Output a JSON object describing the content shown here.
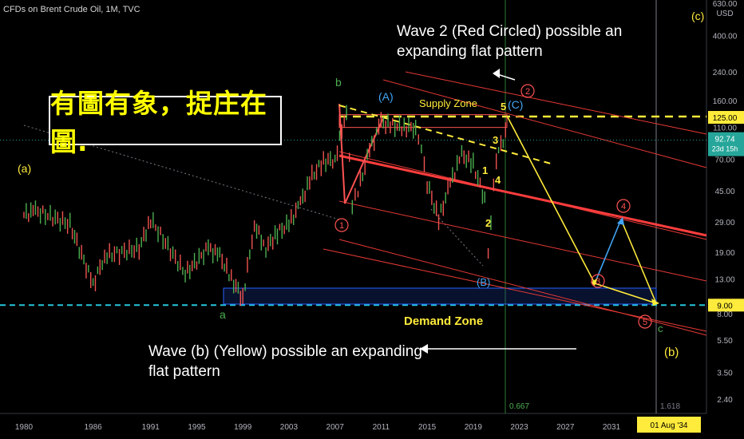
{
  "header": {
    "title": "CFDs on Brent Crude Oil, 1M, TVC"
  },
  "banner": {
    "text": "有圖有象，捉庄在圖."
  },
  "annotations": {
    "wave2_note_line1": "Wave 2 (Red Circled) possible an",
    "wave2_note_line2": "expanding flat pattern",
    "waveb_note_line1": "Wave (b) (Yellow) possible an expanding",
    "waveb_note_line2": "flat pattern",
    "supply_zone": "Supply Zone",
    "demand_zone": "Demand Zone",
    "label_a_paren": "(a)",
    "label_b_green": "b",
    "label_a_green": "a",
    "label_A_blue": "(A)",
    "label_B_blue": "(B)",
    "label_C_blue": "(C)",
    "label_c_paren": "(c)",
    "label_b_paren": "(b)",
    "label_c_green": "c",
    "wave_1": "1",
    "wave_2": "2",
    "wave_3": "3",
    "wave_4": "4",
    "wave_5": "5",
    "circ_1": "1",
    "circ_2": "2",
    "circ_3": "3",
    "circ_4": "4",
    "circ_5": "5",
    "fib_0667": "0.667",
    "fib_1618": "1.618"
  },
  "price_axis": {
    "currency": "USD",
    "ticks": [
      "630.00",
      "400.00",
      "240.00",
      "160.00",
      "125.00",
      "110.00",
      "92.74",
      "70.00",
      "45.00",
      "29.00",
      "19.00",
      "13.00",
      "9.00",
      "8.00",
      "5.50",
      "3.50",
      "2.40"
    ],
    "current_price": "92.74",
    "countdown": "23d 15h",
    "level_125": "125.00",
    "level_9": "9.00"
  },
  "time_axis": {
    "ticks": [
      "1980",
      "1986",
      "1991",
      "1995",
      "1999",
      "2003",
      "2007",
      "2011",
      "2015",
      "2019",
      "2023",
      "2027",
      "2031"
    ],
    "cursor_label": "01 Aug '34"
  },
  "colors": {
    "background": "#000000",
    "yellow": "#ffeb3b",
    "red": "#ff5252",
    "green_label": "#4caf50",
    "blue_label": "#42a5f5",
    "cyan_dash": "#26c6da",
    "candle_up": "#4caf50",
    "candle_down": "#ef5350"
  },
  "chart_data": {
    "type": "line",
    "title": "CFDs on Brent Crude Oil, 1M, TVC",
    "xlabel": "",
    "ylabel": "",
    "yscale": "log",
    "ylim": [
      2.4,
      630
    ],
    "xlim": [
      1979,
      2036
    ],
    "series": [
      {
        "x": [
          1980,
          1981,
          1984,
          1986,
          1987,
          1990,
          1991,
          1994,
          1996,
          1997,
          1998,
          1999,
          2000,
          2001,
          2002,
          2003,
          2004,
          2005,
          2006,
          2007,
          2008,
          2008.5,
          2009,
          2010,
          2011,
          2012,
          2013,
          2014,
          2014.5,
          2015,
          2016,
          2017,
          2018,
          2019,
          2020,
          2020.3,
          2021,
          2022
        ],
        "values": [
          32,
          34,
          28,
          12,
          18,
          20,
          30,
          14,
          20,
          18,
          13,
          10,
          28,
          20,
          25,
          28,
          38,
          55,
          68,
          70,
          140,
          38,
          45,
          80,
          118,
          112,
          110,
          110,
          85,
          50,
          30,
          50,
          75,
          65,
          40,
          19,
          72,
          110
        ]
      }
    ]
  }
}
